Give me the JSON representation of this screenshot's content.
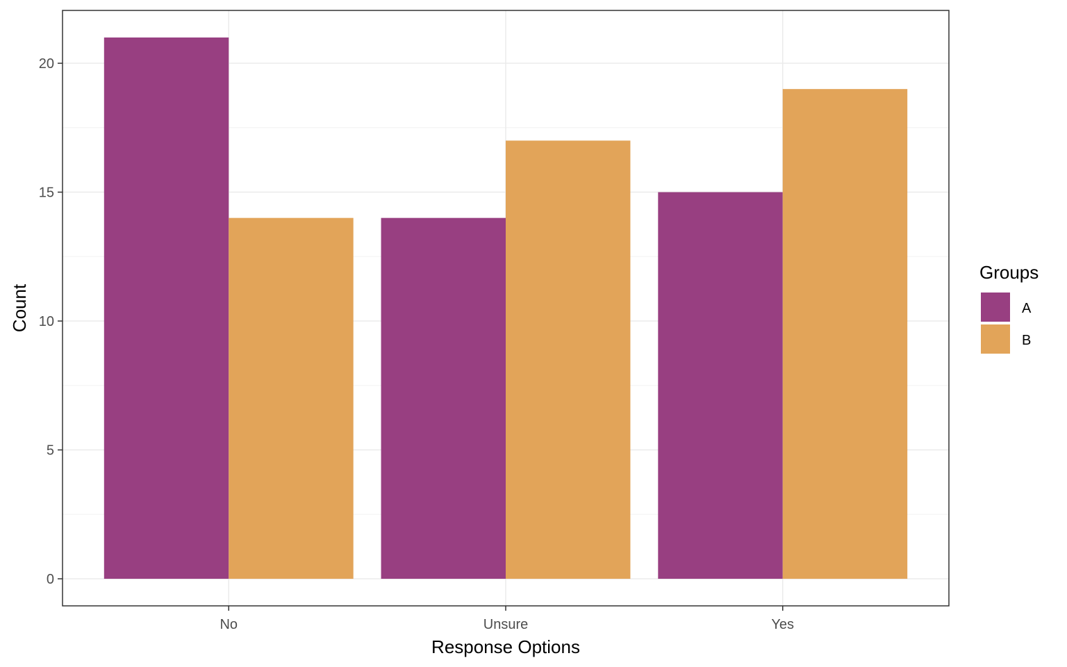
{
  "chart_data": {
    "type": "bar",
    "categories": [
      "No",
      "Unsure",
      "Yes"
    ],
    "series": [
      {
        "name": "A",
        "values": [
          21,
          14,
          15
        ],
        "color": "#983f81"
      },
      {
        "name": "B",
        "values": [
          14,
          17,
          19
        ],
        "color": "#e2a459"
      }
    ],
    "title": "",
    "xlabel": "Response Options",
    "ylabel": "Count",
    "ylim": [
      -1.05,
      22.05
    ],
    "yticks": [
      0,
      5,
      10,
      15,
      20
    ],
    "yminor": [
      2.5,
      7.5,
      12.5,
      17.5
    ],
    "grid": true,
    "legend": {
      "title": "Groups",
      "placement": "right",
      "items": [
        "A",
        "B"
      ]
    },
    "colors": {
      "panel_border": "#333333",
      "grid_major": "#ebebeb",
      "grid_minor": "#f2f2f2",
      "background": "#ffffff"
    }
  }
}
